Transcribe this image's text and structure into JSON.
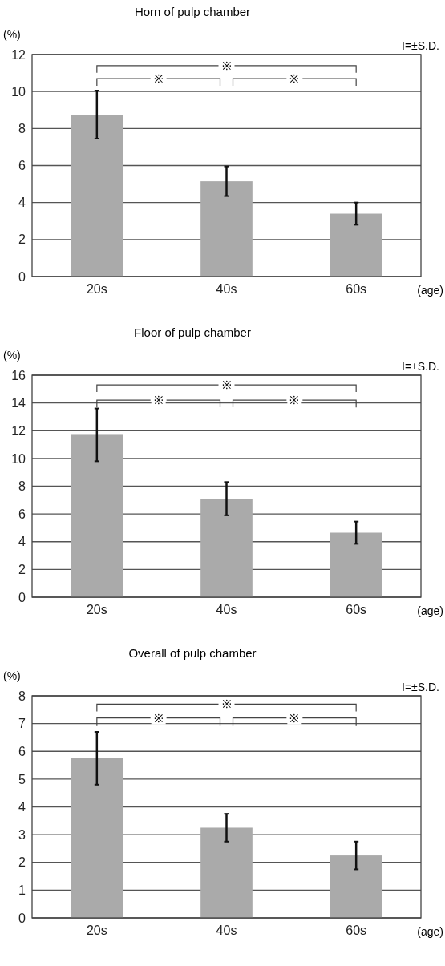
{
  "chart_data": [
    {
      "type": "bar",
      "title": "Horn of pulp chamber",
      "ylabel": "(%)",
      "xlabel": "(age)",
      "categories": [
        "20s",
        "40s",
        "60s"
      ],
      "values": [
        8.75,
        5.15,
        3.4
      ],
      "errors": [
        1.3,
        0.8,
        0.6
      ],
      "color": "#aaaaaa",
      "ylim": [
        0,
        12
      ],
      "yticks": [
        0,
        2,
        4,
        6,
        8,
        10,
        12
      ],
      "grid": "y",
      "annotations": [
        "I=±S.D.",
        {
          "text": "※",
          "y": 11.4
        },
        {
          "text": "※",
          "y": 10.7
        },
        {
          "text": "※",
          "y": 10.7
        }
      ]
    },
    {
      "type": "bar",
      "title": "Floor of pulp chamber",
      "ylabel": "(%)",
      "xlabel": "(age)",
      "categories": [
        "20s",
        "40s",
        "60s"
      ],
      "values": [
        11.7,
        7.1,
        4.65
      ],
      "errors": [
        1.9,
        1.2,
        0.8
      ],
      "color": "#aaaaaa",
      "ylim": [
        0,
        16
      ],
      "yticks": [
        0,
        2,
        4,
        6,
        8,
        10,
        12,
        14,
        16
      ],
      "grid": "y",
      "annotations": [
        "I=±S.D.",
        {
          "text": "※",
          "y": 15.3
        },
        {
          "text": "※",
          "y": 14.2
        },
        {
          "text": "※",
          "y": 14.2
        }
      ]
    },
    {
      "type": "bar",
      "title": "Overall of pulp chamber",
      "ylabel": "(%)",
      "xlabel": "(age)",
      "categories": [
        "20s",
        "40s",
        "60s"
      ],
      "values": [
        5.75,
        3.25,
        2.25
      ],
      "errors": [
        0.95,
        0.5,
        0.5
      ],
      "color": "#aaaaaa",
      "ylim": [
        0,
        8
      ],
      "yticks": [
        0,
        1,
        2,
        3,
        4,
        5,
        6,
        7,
        8
      ],
      "grid": "y",
      "annotations": [
        "I=±S.D.",
        {
          "text": "※",
          "y": 7.7
        },
        {
          "text": "※",
          "y": 7.2
        },
        {
          "text": "※",
          "y": 7.2
        }
      ]
    }
  ]
}
